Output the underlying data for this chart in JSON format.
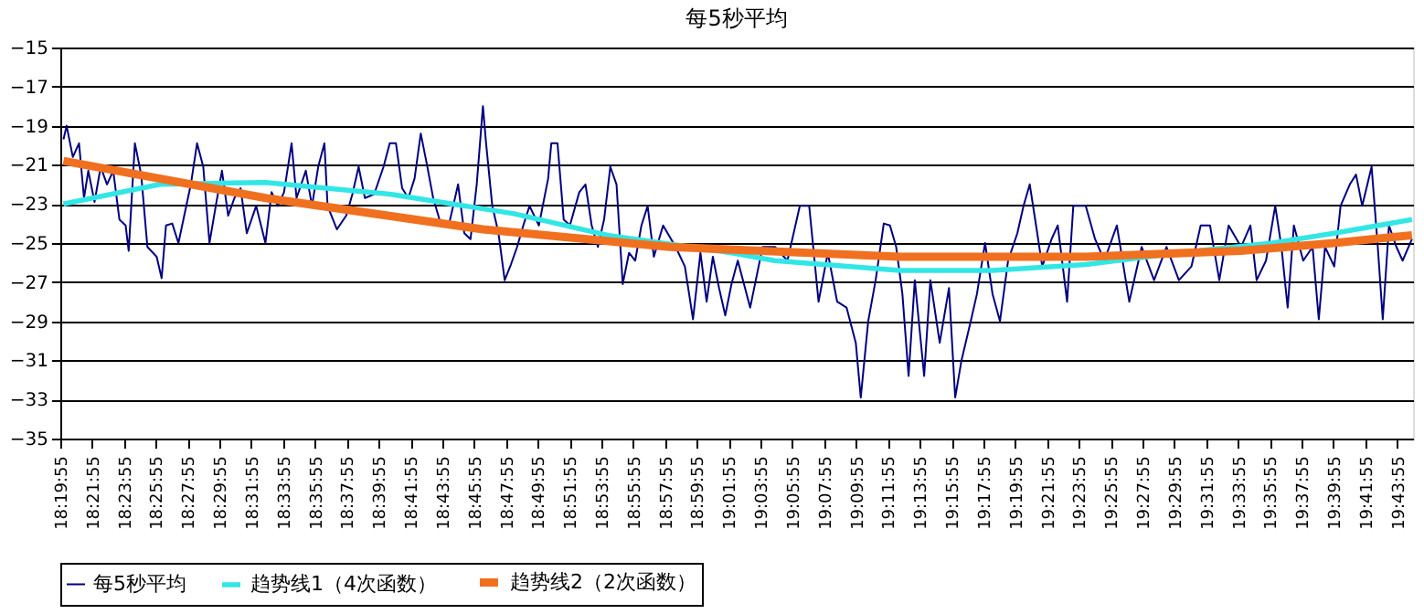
{
  "chart_data": {
    "type": "line",
    "title": "每5秒平均",
    "series": [
      {
        "name": "每5秒平均",
        "color": "#000080",
        "x": [
          18.3352,
          18.3385,
          18.345,
          18.3515,
          18.3567,
          18.3612,
          18.3677,
          18.3742,
          18.3808,
          18.3873,
          18.3938,
          18.4003,
          18.4035,
          18.41,
          18.4166,
          18.4231,
          18.4328,
          18.438,
          18.4426,
          18.4491,
          18.4556,
          18.4686,
          18.4751,
          18.4816,
          18.4881,
          18.4947,
          18.5012,
          18.5077,
          18.5142,
          18.5207,
          18.5272,
          18.537,
          18.5467,
          18.5532,
          18.5597,
          18.5662,
          18.5741,
          18.5793,
          18.589,
          18.5955,
          18.602,
          18.6085,
          18.6118,
          18.6216,
          18.6313,
          18.6378,
          18.6443,
          18.6509,
          18.6606,
          18.6704,
          18.6769,
          18.6834,
          18.6899,
          18.6964,
          18.7029,
          18.7094,
          18.7159,
          18.7224,
          18.729,
          18.7387,
          18.7485,
          18.755,
          18.7615,
          18.768,
          18.7745,
          18.7778,
          18.7843,
          18.7908,
          18.7973,
          18.8038,
          18.8103,
          18.8168,
          18.8233,
          18.8331,
          18.8428,
          18.8461,
          18.8526,
          18.8591,
          18.8656,
          18.8754,
          18.8819,
          18.8884,
          18.8949,
          18.9014,
          18.9079,
          18.9144,
          18.9209,
          18.9275,
          18.934,
          18.9405,
          18.947,
          18.9535,
          18.9632,
          18.9763,
          18.986,
          18.9945,
          19.0023,
          19.0088,
          19.0153,
          19.0218,
          19.0283,
          19.0348,
          19.0414,
          19.0544,
          19.0674,
          19.0804,
          19.0934,
          19.1064,
          19.1162,
          19.126,
          19.1357,
          19.1455,
          19.1553,
          19.165,
          19.1702,
          19.178,
          19.1858,
          19.1943,
          19.2008,
          19.2073,
          19.2138,
          19.2203,
          19.2268,
          19.2366,
          19.2431,
          19.2529,
          19.2626,
          19.2691,
          19.2757,
          19.2854,
          19.2919,
          19.3004,
          19.3082,
          19.316,
          19.3245,
          19.3342,
          19.3407,
          19.3472,
          19.3538,
          19.3603,
          19.37,
          19.3765,
          19.3863,
          19.3928,
          19.4058,
          19.4156,
          19.4253,
          19.4384,
          19.4514,
          19.4644,
          19.4774,
          19.4904,
          19.5034,
          19.5165,
          19.5262,
          19.536,
          19.5457,
          19.5555,
          19.5685,
          19.5783,
          19.5848,
          19.5946,
          19.6043,
          19.6108,
          19.6173,
          19.6238,
          19.6336,
          19.6434,
          19.6499,
          19.6564,
          19.6661,
          19.6727,
          19.6824,
          19.6889,
          19.6954,
          19.7052,
          19.7117,
          19.7169,
          19.7234,
          19.7312,
          19.7377,
          19.7475
        ],
        "values": [
          -19.7,
          -19,
          -20.6,
          -19.9,
          -22.7,
          -21.3,
          -22.9,
          -21.1,
          -22,
          -21.3,
          -23.8,
          -24.1,
          -25.4,
          -19.9,
          -21.5,
          -25.2,
          -25.7,
          -26.8,
          -24.1,
          -24,
          -25,
          -22,
          -19.9,
          -21.1,
          -25,
          -23.1,
          -21.3,
          -23.6,
          -22.7,
          -22.2,
          -24.5,
          -23.1,
          -25,
          -22.4,
          -23.1,
          -22.4,
          -19.9,
          -22.7,
          -21.3,
          -23.1,
          -21.1,
          -19.9,
          -23.1,
          -24.3,
          -23.6,
          -22.5,
          -21.1,
          -22.7,
          -22.5,
          -21.1,
          -19.9,
          -19.9,
          -22.2,
          -22.7,
          -21.7,
          -19.4,
          -21,
          -22.7,
          -23.8,
          -24.1,
          -22,
          -24.5,
          -24.8,
          -22,
          -18,
          -19.9,
          -23.1,
          -24.5,
          -26.9,
          -26.1,
          -25.2,
          -24.1,
          -23.1,
          -24.1,
          -21.7,
          -19.9,
          -19.9,
          -23.8,
          -24.1,
          -22.4,
          -22,
          -24.1,
          -25.2,
          -23.8,
          -21.1,
          -22,
          -27.1,
          -25.5,
          -25.9,
          -24.1,
          -23.1,
          -25.7,
          -24.1,
          -25.2,
          -26.2,
          -28.9,
          -25.5,
          -28,
          -25.7,
          -27.3,
          -28.7,
          -27.1,
          -25.9,
          -28.3,
          -25.2,
          -25.2,
          -25.9,
          -23.1,
          -23.1,
          -28,
          -25.5,
          -28,
          -28.3,
          -30.1,
          -32.9,
          -29,
          -26.9,
          -24,
          -24.1,
          -25.2,
          -27.6,
          -31.8,
          -26.9,
          -31.8,
          -26.9,
          -30.1,
          -27.3,
          -32.9,
          -31,
          -29,
          -27.6,
          -25,
          -27.6,
          -29,
          -25.9,
          -24.5,
          -23.1,
          -22,
          -24.1,
          -26.2,
          -24.8,
          -24.1,
          -28,
          -23.1,
          -23.1,
          -24.8,
          -25.9,
          -24.1,
          -28,
          -25.2,
          -26.9,
          -25.2,
          -26.9,
          -26.2,
          -24.1,
          -24.1,
          -26.9,
          -24.1,
          -25.2,
          -24.1,
          -26.9,
          -25.9,
          -23.1,
          -25.2,
          -28.3,
          -24.1,
          -25.9,
          -25.2,
          -28.9,
          -25.2,
          -26.2,
          -23.1,
          -22,
          -21.5,
          -23.1,
          -21.1,
          -25.2,
          -28.9,
          -24.1,
          -25.2,
          -25.9,
          -24.8
        ]
      },
      {
        "name": "趋势线1（4次函数）",
        "color": "#33e6e6",
        "x": [
          18.3352,
          18.436,
          18.547,
          18.677,
          18.807,
          18.905,
          19.035,
          19.08,
          19.211,
          19.308,
          19.406,
          19.503,
          19.601,
          19.666,
          19.7475
        ],
        "values": [
          -23,
          -22,
          -21.9,
          -22.5,
          -23.5,
          -24.6,
          -25.5,
          -25.9,
          -26.4,
          -26.4,
          -26.1,
          -25.5,
          -25,
          -24.5,
          -23.8
        ]
      },
      {
        "name": "趋势线2（2次函数）",
        "color": "#f07020",
        "x": [
          18.3352,
          18.547,
          18.7745,
          18.97,
          19.211,
          19.406,
          19.568,
          19.666,
          19.7475
        ],
        "values": [
          -20.8,
          -22.7,
          -24.3,
          -25.2,
          -25.7,
          -25.7,
          -25.4,
          -25,
          -24.6
        ]
      }
    ],
    "xlim": [
      18.3319,
      19.7486
    ],
    "xticks": [
      {
        "value": 18.3319,
        "label": "18:19:55"
      },
      {
        "value": 18.3653,
        "label": "18:21:55"
      },
      {
        "value": 18.3986,
        "label": "18:23:55"
      },
      {
        "value": 18.4319,
        "label": "18:25:55"
      },
      {
        "value": 18.4653,
        "label": "18:27:55"
      },
      {
        "value": 18.4986,
        "label": "18:29:55"
      },
      {
        "value": 18.5319,
        "label": "18:31:55"
      },
      {
        "value": 18.5653,
        "label": "18:33:55"
      },
      {
        "value": 18.5986,
        "label": "18:35:55"
      },
      {
        "value": 18.6319,
        "label": "18:37:55"
      },
      {
        "value": 18.6653,
        "label": "18:39:55"
      },
      {
        "value": 18.6986,
        "label": "18:41:55"
      },
      {
        "value": 18.7319,
        "label": "18:43:55"
      },
      {
        "value": 18.7653,
        "label": "18:45:55"
      },
      {
        "value": 18.7986,
        "label": "18:47:55"
      },
      {
        "value": 18.8319,
        "label": "18:49:55"
      },
      {
        "value": 18.8653,
        "label": "18:51:55"
      },
      {
        "value": 18.8986,
        "label": "18:53:55"
      },
      {
        "value": 18.9319,
        "label": "18:55:55"
      },
      {
        "value": 18.9653,
        "label": "18:57:55"
      },
      {
        "value": 18.9986,
        "label": "18:59:55"
      },
      {
        "value": 19.0319,
        "label": "19:01:55"
      },
      {
        "value": 19.0653,
        "label": "19:03:55"
      },
      {
        "value": 19.0986,
        "label": "19:05:55"
      },
      {
        "value": 19.1319,
        "label": "19:07:55"
      },
      {
        "value": 19.1653,
        "label": "19:09:55"
      },
      {
        "value": 19.1986,
        "label": "19:11:55"
      },
      {
        "value": 19.2319,
        "label": "19:13:55"
      },
      {
        "value": 19.2653,
        "label": "19:15:55"
      },
      {
        "value": 19.2986,
        "label": "19:17:55"
      },
      {
        "value": 19.3319,
        "label": "19:19:55"
      },
      {
        "value": 19.3653,
        "label": "19:21:55"
      },
      {
        "value": 19.3986,
        "label": "19:23:55"
      },
      {
        "value": 19.4319,
        "label": "19:25:55"
      },
      {
        "value": 19.4653,
        "label": "19:27:55"
      },
      {
        "value": 19.4986,
        "label": "19:29:55"
      },
      {
        "value": 19.5319,
        "label": "19:31:55"
      },
      {
        "value": 19.5653,
        "label": "19:33:55"
      },
      {
        "value": 19.5986,
        "label": "19:35:55"
      },
      {
        "value": 19.6319,
        "label": "19:37:55"
      },
      {
        "value": 19.6653,
        "label": "19:39:55"
      },
      {
        "value": 19.6986,
        "label": "19:41:55"
      },
      {
        "value": 19.7319,
        "label": "19:43:55"
      }
    ],
    "ylim": [
      -35,
      -15
    ],
    "yticks": [
      -35,
      -33,
      -31,
      -29,
      -27,
      -25,
      -23,
      -21,
      -19,
      -17,
      -15
    ],
    "grid": "y",
    "legend": "bottom",
    "marker": "none",
    "line_style": "solid"
  }
}
